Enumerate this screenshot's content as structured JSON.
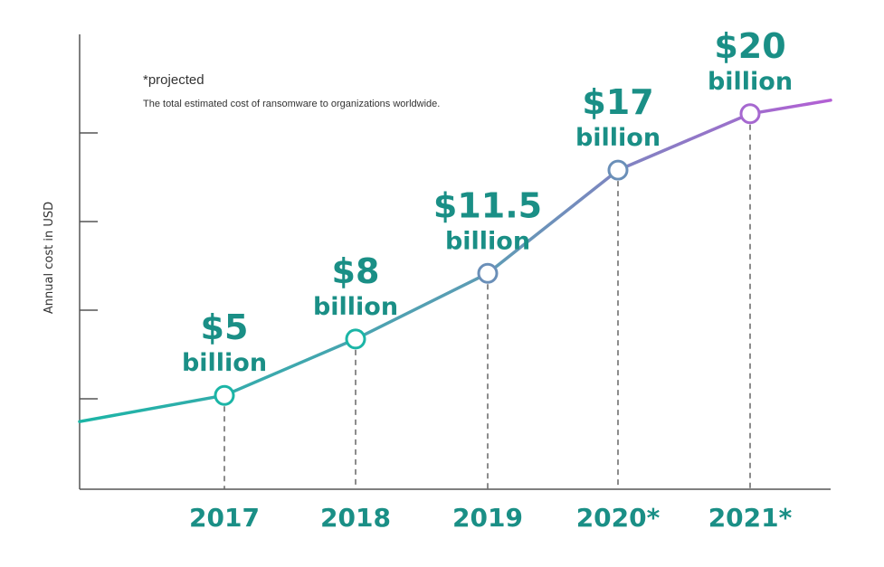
{
  "note": {
    "title": "*projected",
    "description": "The total estimated cost of ransomware to organizations worldwide."
  },
  "colors": {
    "start": "#1bb5a6",
    "end": "#b35fd4",
    "label": "#1a8f86",
    "axis": "#555555"
  },
  "chart_data": {
    "type": "line",
    "title": "",
    "xlabel": "",
    "ylabel": "Annual cost in USD",
    "ylim": [
      0,
      25
    ],
    "grid": false,
    "categories": [
      "2017",
      "2018",
      "2019",
      "2020*",
      "2021*"
    ],
    "values": [
      5,
      8,
      11.5,
      17,
      20
    ],
    "data_labels": [
      {
        "amount": "$5",
        "unit": "billion"
      },
      {
        "amount": "$8",
        "unit": "billion"
      },
      {
        "amount": "$11.5",
        "unit": "billion"
      },
      {
        "amount": "$17",
        "unit": "billion"
      },
      {
        "amount": "$20",
        "unit": "billion"
      }
    ]
  }
}
